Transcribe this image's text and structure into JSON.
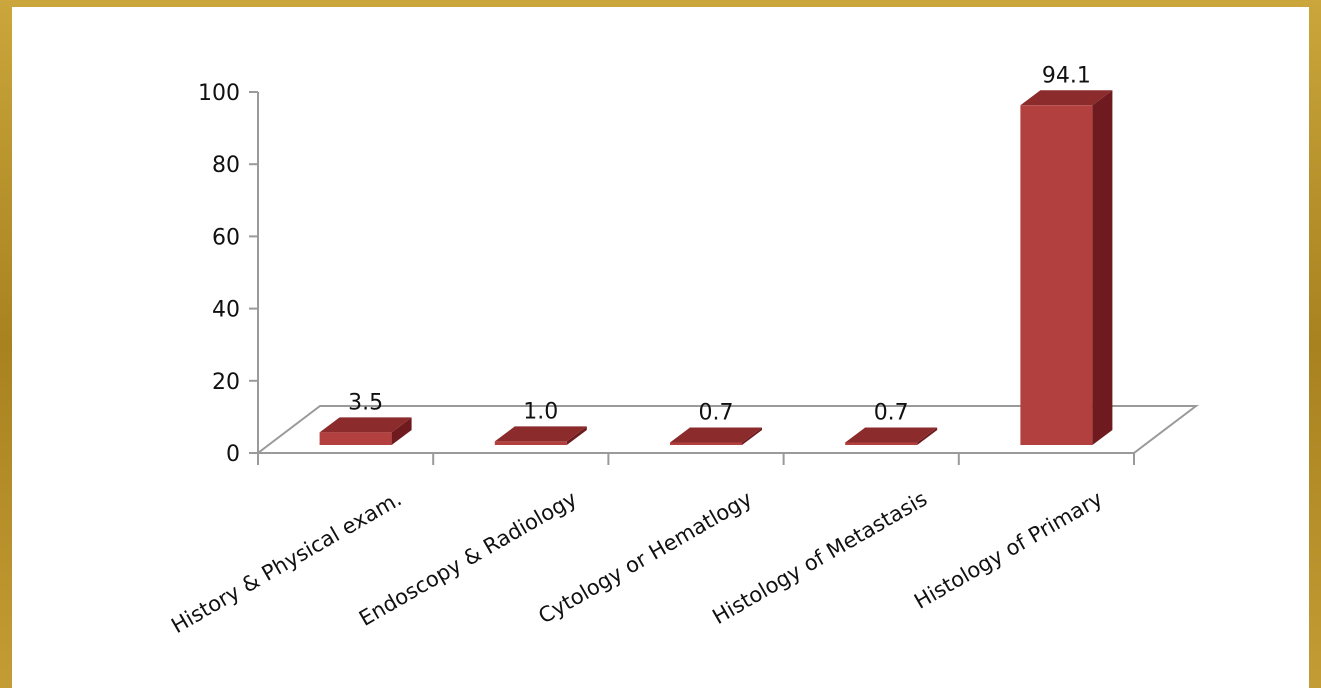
{
  "chart_data": {
    "type": "bar",
    "style": "3d",
    "categories": [
      "History & Physical exam.",
      "Endoscopy & Radiology",
      "Cytology or Hematlogy",
      "Histology of Metastasis",
      "Histology of Primary"
    ],
    "values": [
      3.5,
      1.0,
      0.7,
      0.7,
      94.1
    ],
    "data_labels": [
      "3.5",
      "1.0",
      "0.7",
      "0.7",
      "94.1"
    ],
    "ylim": [
      0,
      100
    ],
    "yticks": [
      0,
      20,
      40,
      60,
      80,
      100
    ],
    "grid": false,
    "legend": "none",
    "colors": {
      "bar_front": "#b2403f",
      "bar_top": "#8c2b2b",
      "bar_side": "#6e1a1f",
      "axis": "#9a9a9a",
      "frame": "#b8932a"
    }
  }
}
